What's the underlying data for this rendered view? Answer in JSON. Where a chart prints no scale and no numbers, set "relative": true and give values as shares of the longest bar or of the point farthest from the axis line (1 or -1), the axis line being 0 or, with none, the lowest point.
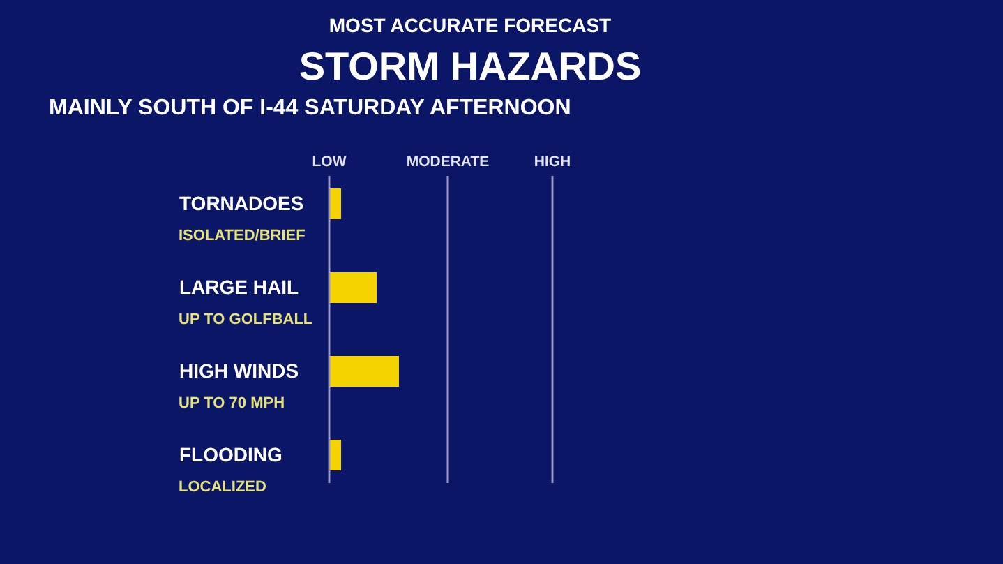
{
  "chart_data": {
    "type": "bar",
    "orientation": "horizontal",
    "relative": true,
    "title": "STORM HAZARDS",
    "subtitle": "MAINLY SOUTH OF I-44 SATURDAY AFTERNOON",
    "annotations": [
      "MOST ACCURATE FORECAST",
      "ISOLATED/BRIEF",
      "UP TO GOLFBALL",
      "UP TO 70 MPH",
      "LOCALIZED"
    ],
    "categories": [
      "TORNADOES",
      "LARGE HAIL",
      "HIGH WINDS",
      "FLOODING"
    ],
    "values": [
      0.17,
      0.68,
      1,
      0.17
    ],
    "color": "#f5d300",
    "ref_lines": [
      {
        "axis": "x",
        "value": 0,
        "label": "LOW",
        "color": "#9a9ad0"
      },
      {
        "axis": "x",
        "value": 1.7,
        "label": "MODERATE",
        "color": "#9a9ad0"
      },
      {
        "axis": "x",
        "value": 3.2,
        "label": "HIGH",
        "color": "#9a9ad0"
      }
    ]
  }
}
